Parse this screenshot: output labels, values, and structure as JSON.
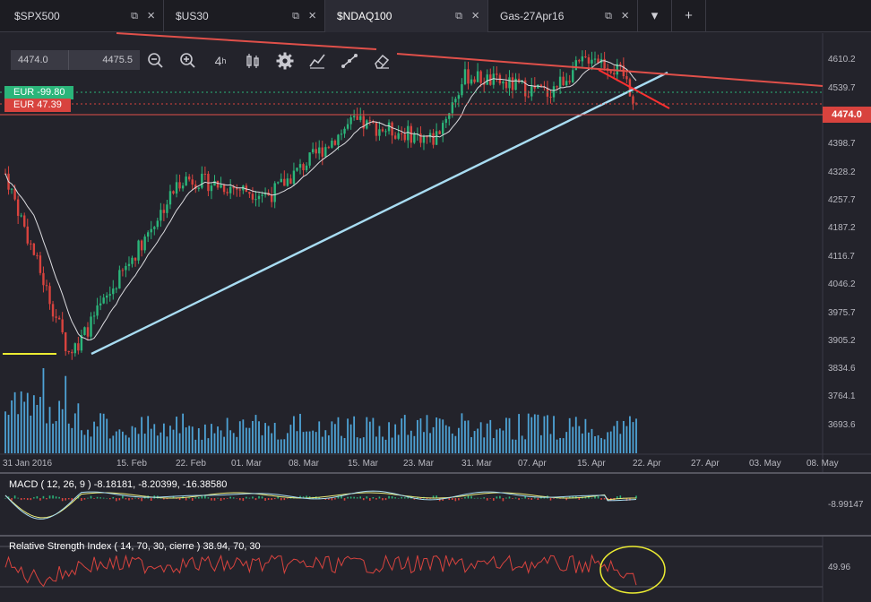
{
  "tabs": [
    {
      "label": "$SPX500",
      "active": false
    },
    {
      "label": "$US30",
      "active": false
    },
    {
      "label": "$NDAQ100",
      "active": true
    },
    {
      "label": "Gas-27Apr16",
      "active": false
    }
  ],
  "tab_actions": {
    "dropdown_icon": "caret-down-icon",
    "add_icon": "plus-icon",
    "add_label": "+"
  },
  "toolbar": {
    "bid": "4474.0",
    "ask": "4475.5",
    "tools": [
      "zoom-out-icon",
      "zoom-in-icon",
      "period-icon",
      "candlestick-icon",
      "gear-icon",
      "indicators-icon",
      "drawing-icon",
      "eraser-icon"
    ],
    "period_label": "4"
  },
  "position_tags": [
    {
      "label": "EUR -99.80",
      "color": "#2bb57a"
    },
    {
      "label": "EUR 47.39",
      "color": "#d8433e"
    }
  ],
  "current_price": "4474.0",
  "price_axis": [
    "4610.2",
    "4539.7",
    "4474.0",
    "4398.7",
    "4328.2",
    "4257.7",
    "4187.2",
    "4116.7",
    "4046.2",
    "3975.7",
    "3905.2",
    "3834.6",
    "3764.1",
    "3693.6"
  ],
  "date_axis": [
    "31 Jan 2016",
    "15. Feb",
    "22. Feb",
    "01. Mar",
    "08. Mar",
    "15. Mar",
    "23. Mar",
    "31. Mar",
    "07. Apr",
    "15. Apr",
    "22. Apr",
    "27. Apr",
    "03. May",
    "08. May"
  ],
  "macd": {
    "title": "MACD ( 12, 26, 9 ) -8.18181, -8.20399, -16.38580",
    "axis_value": "-8.99147"
  },
  "rsi": {
    "title": "Relative Strength Index ( 14, 70, 30, cierre ) 38.94, 70, 30",
    "axis_value": "49.96"
  },
  "colors": {
    "bull": "#2bb57a",
    "bear": "#d8433e",
    "trendline": "#a8dcf2",
    "resistance": "#e0504a",
    "volume": "#4ea3d6",
    "rsi_line": "#d8433e",
    "macd_line": "#ecec7a",
    "signal_line": "#a8dcf2",
    "highlight": "#ecec32",
    "support_mark": "#ecec32"
  },
  "chart_data": {
    "type": "candlestick",
    "start_price": 4310,
    "trough": 3890,
    "last": 4474.0,
    "ylim": [
      3650,
      4640
    ],
    "bars": 200
  }
}
